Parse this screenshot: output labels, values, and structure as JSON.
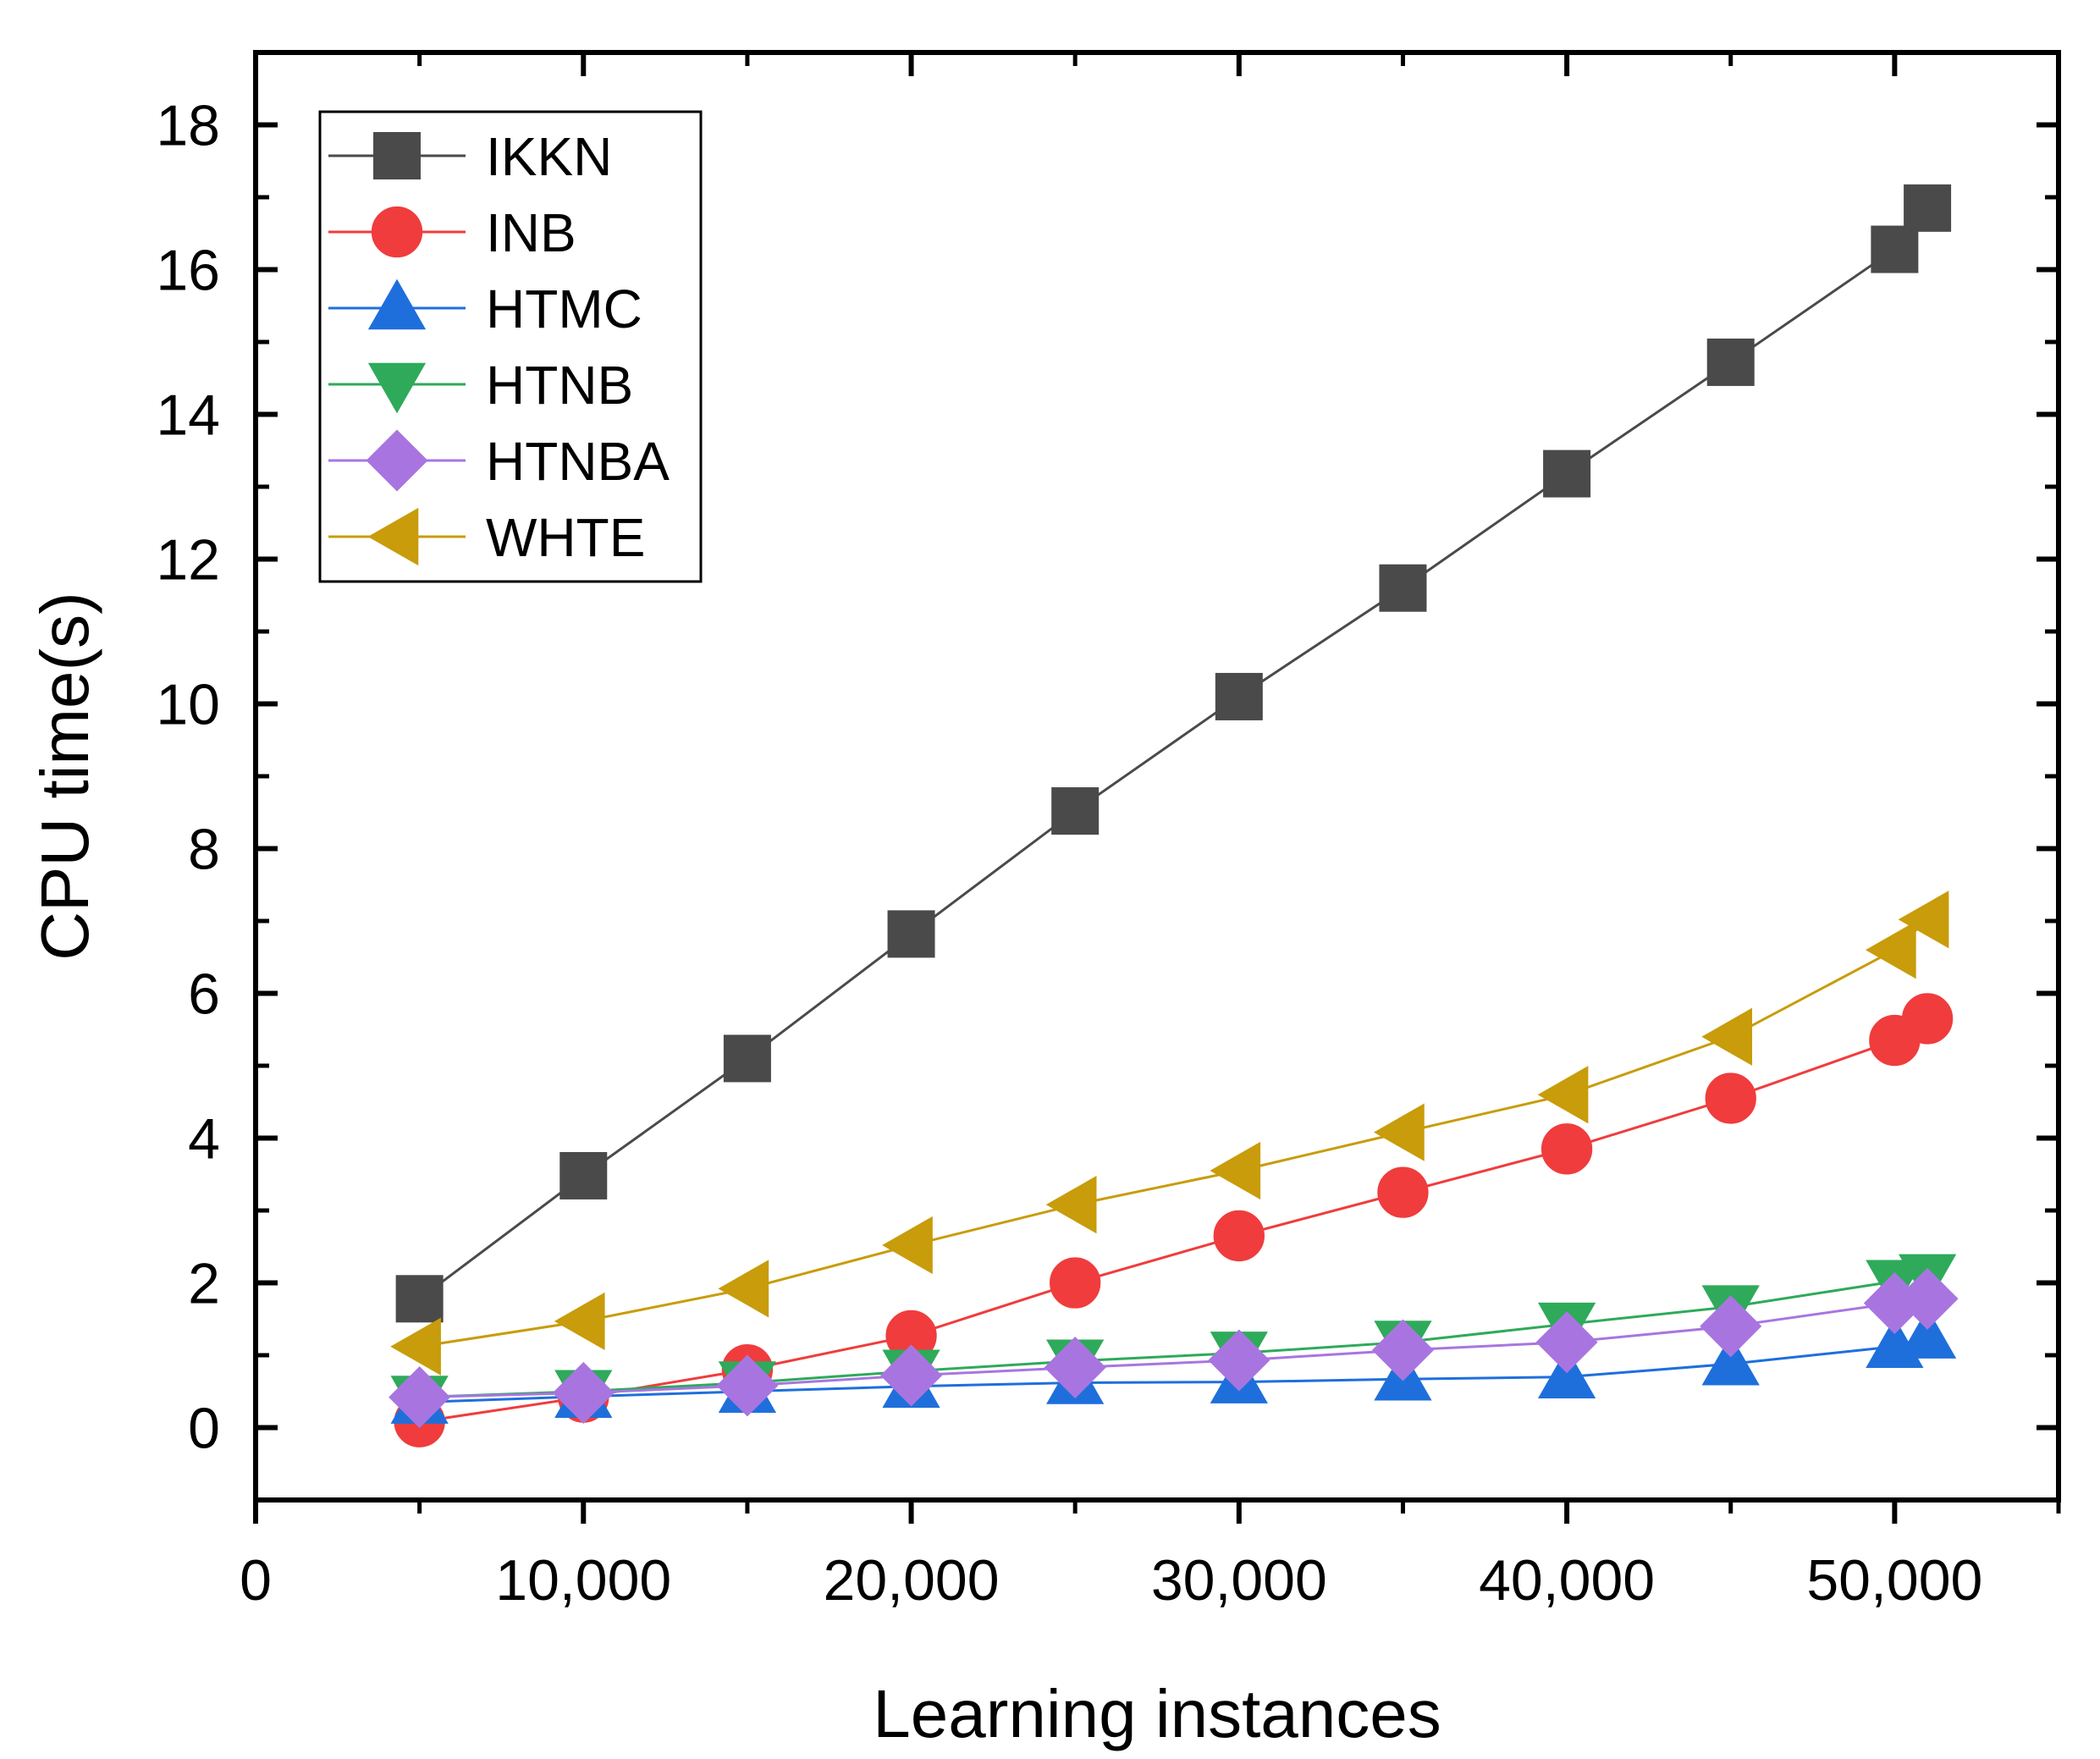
{
  "chart_data": {
    "type": "line",
    "title": "",
    "xlabel": "Learning instances",
    "ylabel": "CPU time(s)",
    "xlim": [
      0,
      55000
    ],
    "ylim": [
      -1,
      19
    ],
    "x_ticks": [
      0,
      10000,
      20000,
      30000,
      40000,
      50000
    ],
    "x_tick_labels": [
      "0",
      "10,000",
      "20,000",
      "30,000",
      "40,000",
      "50,000"
    ],
    "y_ticks": [
      0,
      2,
      4,
      6,
      8,
      10,
      12,
      14,
      16,
      18
    ],
    "y_tick_labels": [
      "0",
      "2",
      "4",
      "6",
      "8",
      "10",
      "12",
      "14",
      "16",
      "18"
    ],
    "grid": false,
    "legend_position": "top-left",
    "x": [
      5000,
      10000,
      15000,
      20000,
      25000,
      30000,
      35000,
      40000,
      45000,
      50000,
      51000
    ],
    "series": [
      {
        "name": "IKKN",
        "marker": "square",
        "color": "#4a4a4a",
        "values": [
          1.78,
          3.48,
          5.1,
          6.82,
          8.52,
          10.1,
          11.6,
          13.18,
          14.72,
          16.28,
          16.85
        ]
      },
      {
        "name": "INB",
        "marker": "circle",
        "color": "#f03c3c",
        "values": [
          0.08,
          0.42,
          0.8,
          1.27,
          2.0,
          2.65,
          3.25,
          3.85,
          4.55,
          5.35,
          5.65
        ]
      },
      {
        "name": "HTMC",
        "marker": "triangle-up",
        "color": "#1e6fdc",
        "values": [
          0.35,
          0.43,
          0.5,
          0.57,
          0.62,
          0.63,
          0.67,
          0.7,
          0.88,
          1.12,
          1.25
        ]
      },
      {
        "name": "HTNB",
        "marker": "triangle-down",
        "color": "#2eaa5a",
        "values": [
          0.42,
          0.5,
          0.62,
          0.78,
          0.92,
          1.03,
          1.18,
          1.43,
          1.67,
          2.02,
          2.1
        ]
      },
      {
        "name": "HTNBA",
        "marker": "diamond",
        "color": "#a875e0",
        "values": [
          0.42,
          0.48,
          0.58,
          0.72,
          0.83,
          0.93,
          1.07,
          1.18,
          1.4,
          1.72,
          1.78
        ]
      },
      {
        "name": "WHTE",
        "marker": "triangle-left",
        "color": "#c89c0a",
        "values": [
          1.12,
          1.47,
          1.92,
          2.52,
          3.08,
          3.55,
          4.08,
          4.6,
          5.4,
          6.6,
          7.02
        ]
      }
    ]
  }
}
